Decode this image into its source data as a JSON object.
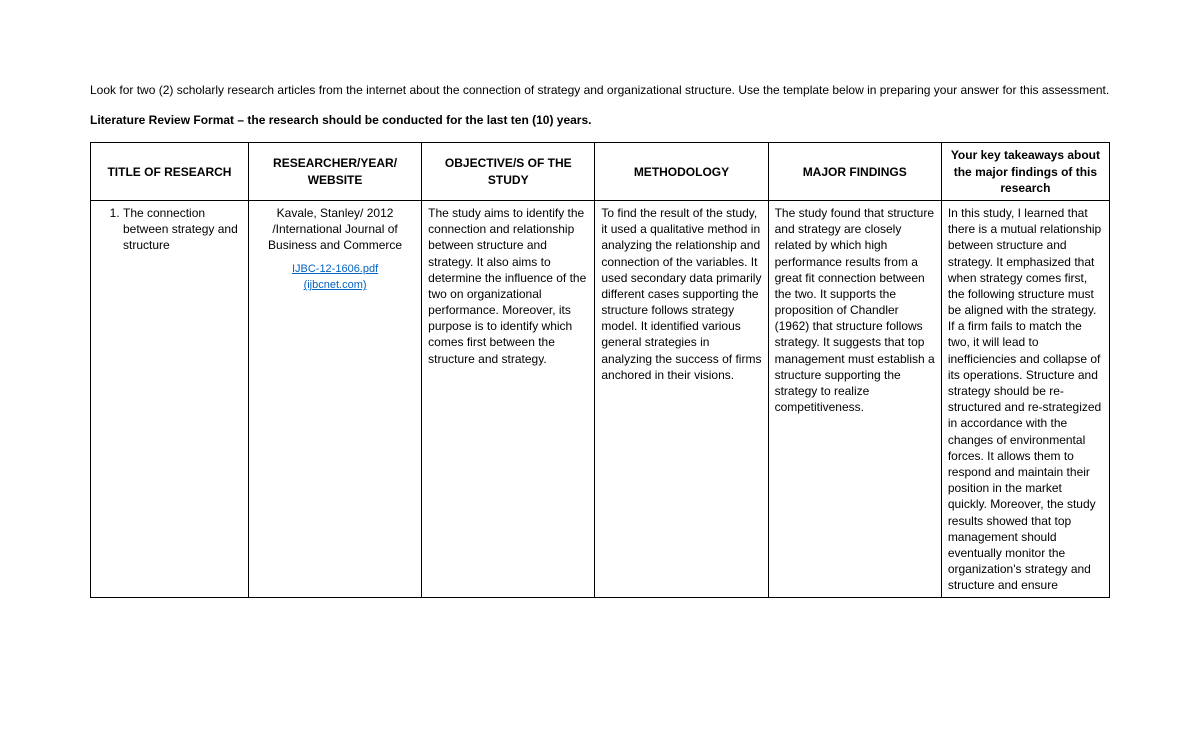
{
  "intro": "Look for two (2) scholarly research articles from the internet about the connection of strategy and organizational structure. Use the template below in preparing your answer for this assessment.",
  "format_note": "Literature Review Format – the research should be conducted for the last ten (10) years.",
  "headers": {
    "c1": "TITLE OF RESEARCH",
    "c2": "RESEARCHER/YEAR/ WEBSITE",
    "c3": "OBJECTIVE/S OF THE STUDY",
    "c4": "METHODOLOGY",
    "c5": "MAJOR FINDINGS",
    "c6": "Your key takeaways about the major findings of this research"
  },
  "row1": {
    "title": "The connection between strategy and structure",
    "researcher_line1": "Kavale, Stanley/ 2012 /International Journal of Business and Commerce",
    "link1": "IJBC-12-1606.pdf",
    "link2": "(ijbcnet.com)",
    "objective": "The study aims to identify the connection and relationship between structure and strategy. It also aims to determine the influence of the two on organizational performance. Moreover, its purpose is to identify which comes first between the structure and strategy.",
    "methodology": "To find the result of the study, it used a qualitative method in analyzing the relationship and connection of the variables. It used secondary data primarily different cases supporting the structure follows strategy model. It identified various general strategies in analyzing the success of firms anchored in their visions.",
    "findings": "The study found that structure and strategy are closely related by which high performance results from a great fit connection between the two. It supports the proposition of Chandler (1962) that structure follows strategy. It suggests that top management must establish a structure supporting the strategy to realize competitiveness.",
    "takeaways": "In this study, I learned that there is a mutual relationship between structure and strategy. It emphasized that when strategy comes first, the following structure must be aligned with the strategy. If a firm fails to match the two, it will lead to inefficiencies and collapse of its operations. Structure and strategy should be re-structured and re-strategized in accordance with the changes of environmental forces. It allows them to respond and maintain their position in the market quickly. Moreover, the study results showed that top management should eventually monitor the organization's strategy and structure and ensure"
  }
}
